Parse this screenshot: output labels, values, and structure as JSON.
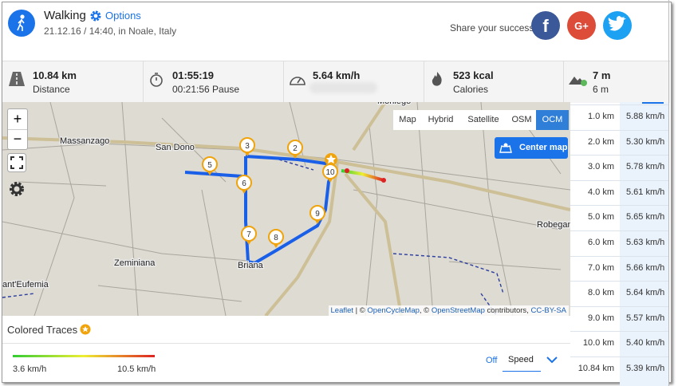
{
  "header": {
    "activity": "Walking",
    "options": "Options",
    "datetime": "21.12.16 / 14:40, in Noale, Italy",
    "share": "Share your success"
  },
  "stats": [
    {
      "value": "10.84 km",
      "label": "Distance"
    },
    {
      "value": "01:55:19",
      "label": "00:21:56 Pause"
    },
    {
      "value": "5.64 km/h"
    },
    {
      "value": "523 kcal",
      "label": "Calories"
    },
    {
      "value": "7 m",
      "label": "6 m"
    }
  ],
  "map": {
    "layers": [
      "Map",
      "Hybrid",
      "Satellite",
      "OSM",
      "OCM"
    ],
    "active_layer": "OCM",
    "center_button": "Center map",
    "places": [
      "Massanzago",
      "San Dono",
      "Zeminiana",
      "Briana",
      "ant'Eufemia",
      "Robegan",
      "Moniego"
    ],
    "markers": [
      "2",
      "3",
      "5",
      "6",
      "7",
      "8",
      "9",
      "10"
    ],
    "attribution": [
      "Leaflet",
      " | © ",
      "OpenCycleMap",
      ", © ",
      "OpenStreetMap",
      " contributors, ",
      "CC-BY-SA"
    ]
  },
  "traces": {
    "title": "Colored Traces",
    "min": "3.6 km/h",
    "max": "10.5 km/h",
    "toggle": "Off",
    "metric": "Speed"
  },
  "splits": {
    "rows": [
      [
        "1.0 km",
        "5.88 km/h"
      ],
      [
        "2.0 km",
        "5.30 km/h"
      ],
      [
        "3.0 km",
        "5.78 km/h"
      ],
      [
        "4.0 km",
        "5.61 km/h"
      ],
      [
        "5.0 km",
        "5.65 km/h"
      ],
      [
        "6.0 km",
        "5.63 km/h"
      ],
      [
        "7.0 km",
        "5.66 km/h"
      ],
      [
        "8.0 km",
        "5.64 km/h"
      ],
      [
        "9.0 km",
        "5.57 km/h"
      ],
      [
        "10.0 km",
        "5.40 km/h"
      ],
      [
        "10.84 km",
        "5.39 km/h"
      ]
    ]
  }
}
